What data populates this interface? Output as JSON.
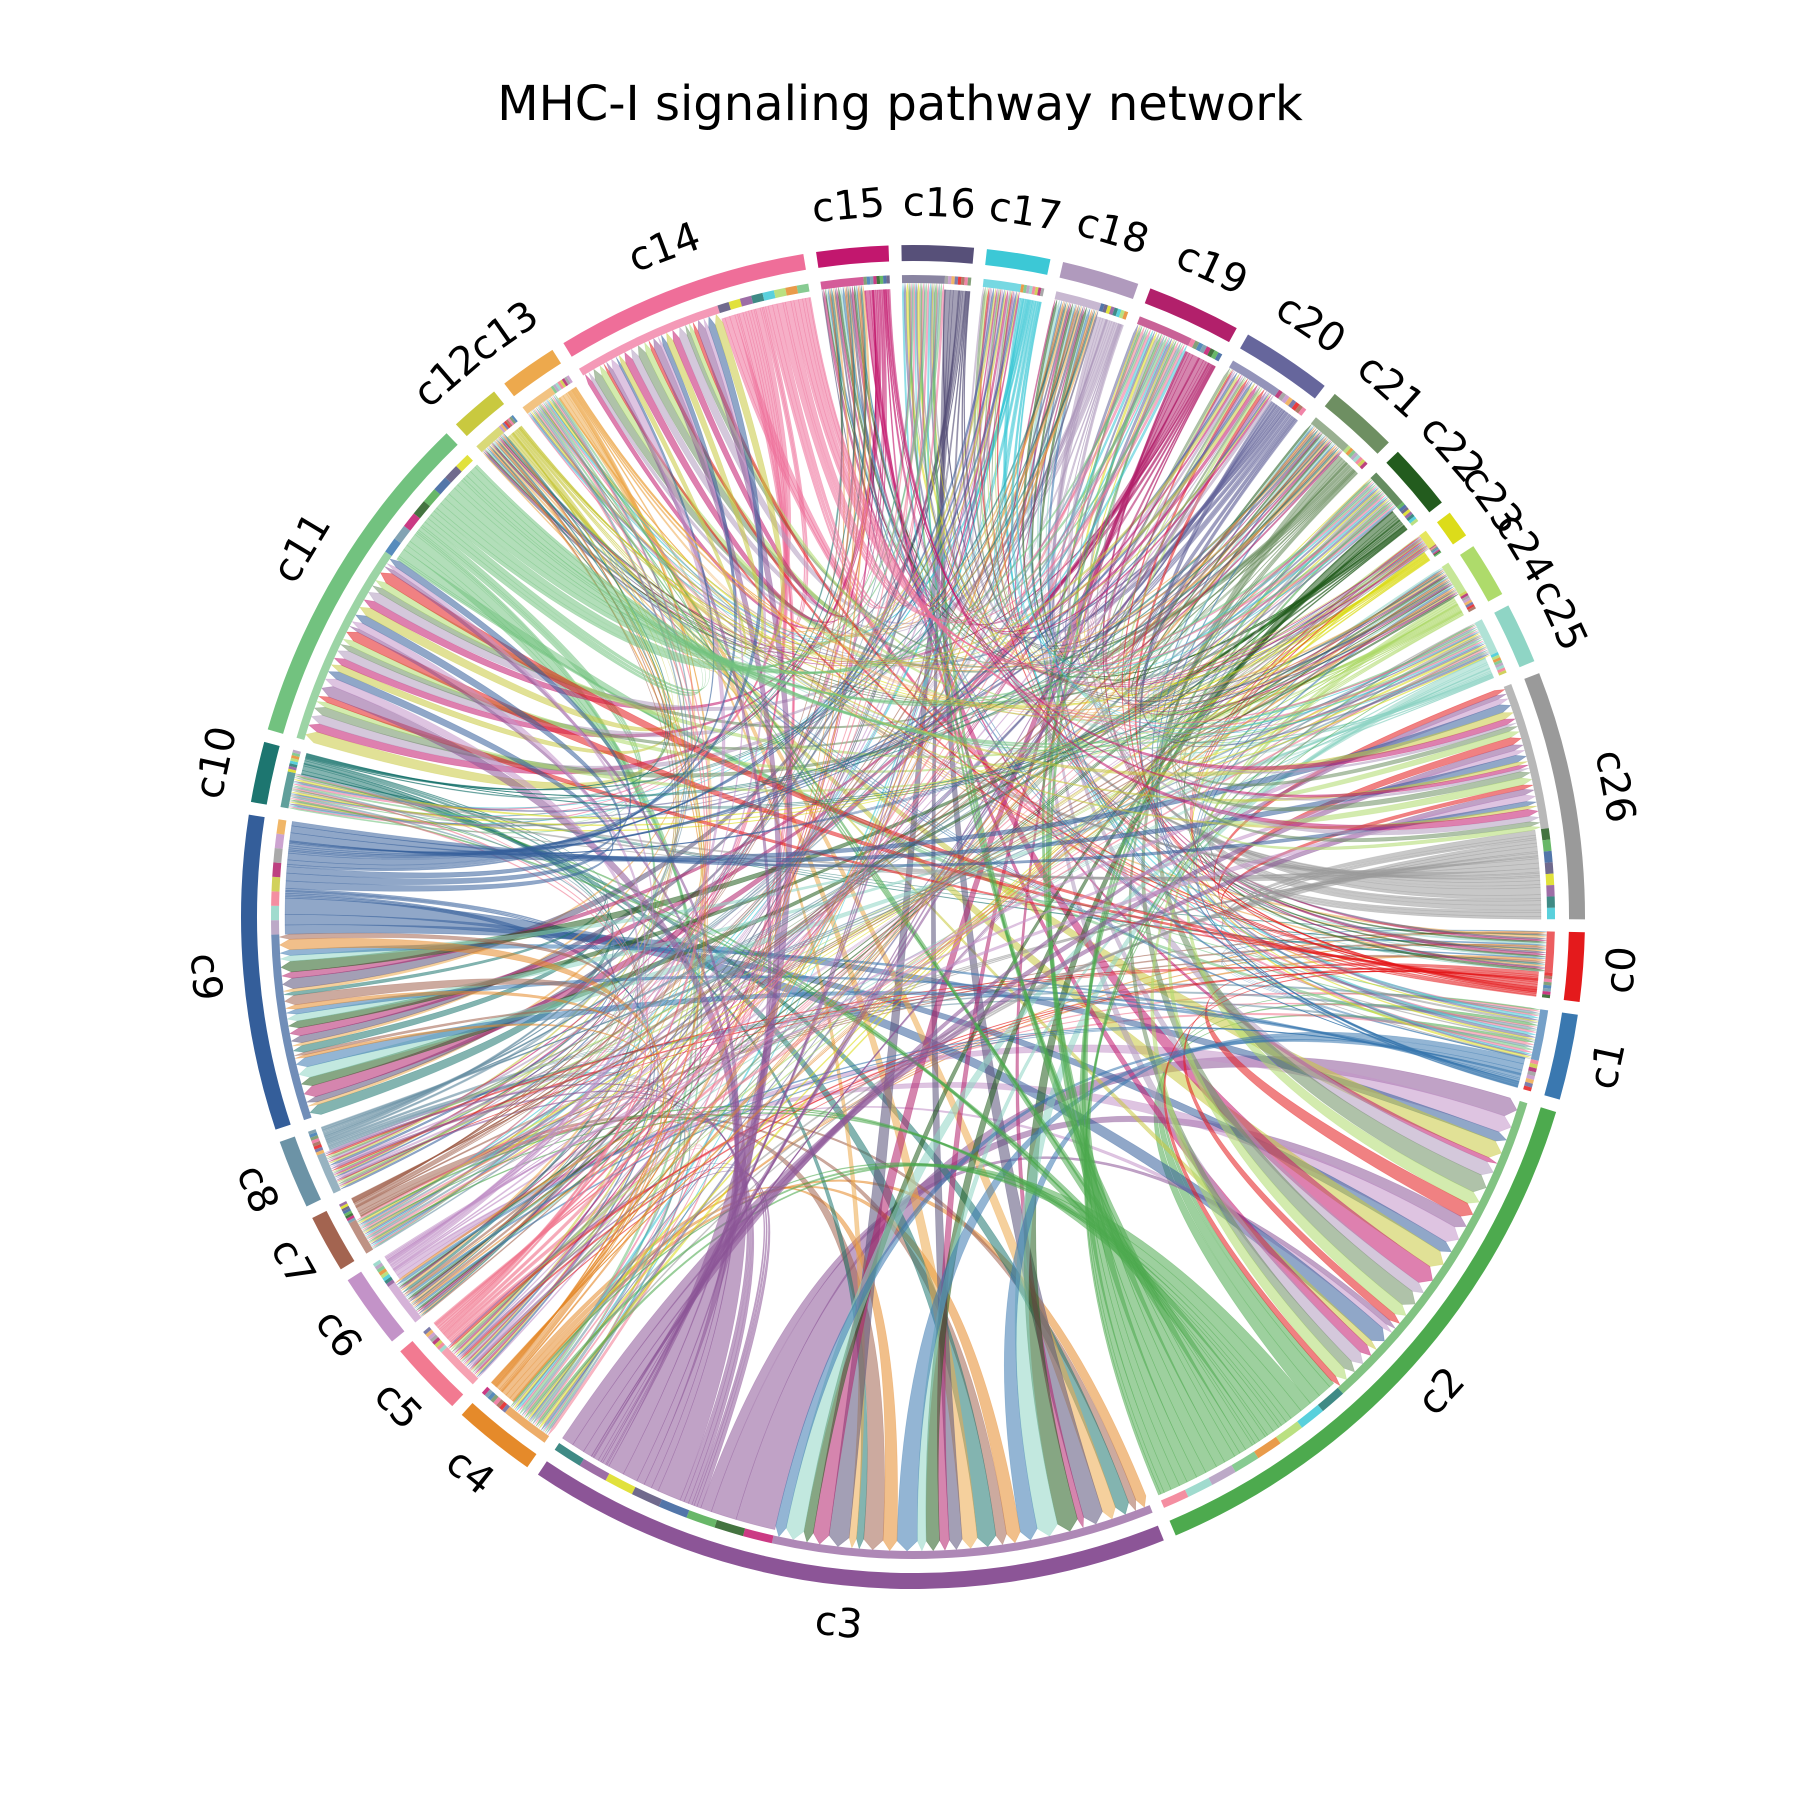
{
  "chart_data": {
    "type": "chord",
    "title": "MHC-I signaling pathway network",
    "groups": [
      {
        "name": "c0",
        "color": "#e41a1c",
        "value": 2.5
      },
      {
        "name": "c1",
        "color": "#3a78b0",
        "value": 3.1
      },
      {
        "name": "c2",
        "color": "#4daa4e",
        "value": 21.0
      },
      {
        "name": "c3",
        "color": "#8c5597",
        "value": 23.4
      },
      {
        "name": "c4",
        "color": "#e58a2a",
        "value": 3.0
      },
      {
        "name": "c5",
        "color": "#f27a91",
        "value": 2.7
      },
      {
        "name": "c6",
        "color": "#c393c8",
        "value": 2.7
      },
      {
        "name": "c7",
        "color": "#a36450",
        "value": 2.1
      },
      {
        "name": "c8",
        "color": "#6c93a6",
        "value": 2.5
      },
      {
        "name": "c9",
        "color": "#345e9a",
        "value": 11.4
      },
      {
        "name": "c10",
        "color": "#1d7670",
        "value": 2.2
      },
      {
        "name": "c11",
        "color": "#72c27f",
        "value": 12.5
      },
      {
        "name": "c12",
        "color": "#c9c93f",
        "value": 1.8
      },
      {
        "name": "c13",
        "color": "#eda94d",
        "value": 2.1
      },
      {
        "name": "c14",
        "color": "#ef6e99",
        "value": 9.2
      },
      {
        "name": "c15",
        "color": "#c2176e",
        "value": 2.6
      },
      {
        "name": "c16",
        "color": "#575079",
        "value": 2.6
      },
      {
        "name": "c17",
        "color": "#3cc8d6",
        "value": 2.3
      },
      {
        "name": "c18",
        "color": "#b09abd",
        "value": 2.8
      },
      {
        "name": "c19",
        "color": "#b2206b",
        "value": 3.4
      },
      {
        "name": "c20",
        "color": "#66669c",
        "value": 3.3
      },
      {
        "name": "c21",
        "color": "#6e8f62",
        "value": 2.6
      },
      {
        "name": "c22",
        "color": "#235c1e",
        "value": 2.4
      },
      {
        "name": "c23",
        "color": "#dcdc1a",
        "value": 1.0
      },
      {
        "name": "c24",
        "color": "#aedb6b",
        "value": 2.0
      },
      {
        "name": "c25",
        "color": "#8fd5c5",
        "value": 2.2
      },
      {
        "name": "c26",
        "color": "#9a9a9a",
        "value": 9.0
      }
    ],
    "links_per_target": 27,
    "legend": "none",
    "grid": false
  }
}
